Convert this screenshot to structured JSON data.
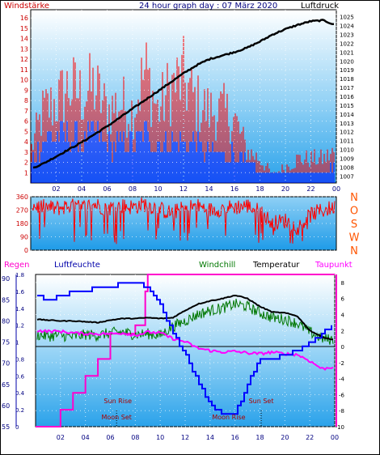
{
  "header": {
    "left_label": "Windstärke",
    "title": "24 hour graph day : 07 März 2020",
    "right_label": "Luftdruck"
  },
  "colors": {
    "wind": "#ff0000",
    "wind_gust": "#ff0000",
    "wind_avg": "#0000ff",
    "pressure": "#000000",
    "direction": "#ff0000",
    "humidity": "#0000ff",
    "rain": "#ff00cc",
    "windchill": "#007700",
    "temperature": "#000000",
    "dewpoint": "#ff00ff",
    "left_axis_label": "#cc0000",
    "right_axis_label": "#ff5500"
  },
  "chart_data": [
    {
      "type": "bar",
      "panel": "wind_pressure",
      "title": "24 hour graph day : 07 März 2020",
      "xlabel": "",
      "x_ticks": [
        "02",
        "04",
        "06",
        "08",
        "10",
        "12",
        "14",
        "16",
        "18",
        "20",
        "22",
        "00"
      ],
      "y_left": {
        "label": "Windstärke",
        "ticks": [
          1,
          2,
          3,
          4,
          5,
          6,
          7,
          8,
          9,
          10,
          11,
          12,
          13,
          14,
          15,
          16
        ],
        "lim": [
          0,
          16.8
        ]
      },
      "y_right": {
        "label": "Luftdruck",
        "ticks": [
          1007,
          1008,
          1009,
          1010,
          1011,
          1012,
          1013,
          1014,
          1015,
          1016,
          1017,
          1018,
          1019,
          1020,
          1021,
          1022,
          1023,
          1024,
          1025
        ],
        "lim": [
          1006.2,
          1025.8
        ]
      },
      "series": [
        {
          "name": "Windstärke",
          "axis": "left",
          "role": "gust",
          "x": [
            0,
            1,
            2,
            3,
            4,
            5,
            6,
            7,
            8,
            9,
            10,
            11,
            12,
            13,
            14,
            15,
            16,
            17,
            18,
            19,
            20,
            21,
            22,
            23,
            24
          ],
          "values": [
            4,
            9,
            10,
            12,
            11,
            12,
            9,
            10,
            9,
            14,
            9,
            12,
            13,
            10,
            9,
            9,
            8,
            4,
            3,
            1,
            2,
            3,
            3,
            3,
            4
          ]
        },
        {
          "name": "Windstärke Mittel",
          "axis": "left",
          "role": "average",
          "x": [
            0,
            1,
            2,
            3,
            4,
            5,
            6,
            7,
            8,
            9,
            10,
            11,
            12,
            13,
            14,
            15,
            16,
            17,
            18,
            19,
            20,
            21,
            22,
            23,
            24
          ],
          "values": [
            2,
            4,
            5,
            5,
            4,
            5,
            4,
            4,
            4,
            5,
            4,
            4,
            4,
            4,
            3,
            3,
            3,
            2,
            1,
            1,
            1,
            1,
            1,
            1,
            2
          ]
        },
        {
          "name": "Luftdruck",
          "axis": "right",
          "x": [
            0,
            1,
            2,
            3,
            4,
            5,
            6,
            7,
            8,
            9,
            10,
            11,
            12,
            13,
            14,
            15,
            16,
            17,
            18,
            19,
            20,
            21,
            22,
            23,
            24
          ],
          "values": [
            1007.8,
            1008.4,
            1009.2,
            1010.0,
            1010.8,
            1011.7,
            1012.6,
            1013.6,
            1014.6,
            1015.6,
            1016.6,
            1017.6,
            1018.6,
            1019.5,
            1020.2,
            1020.6,
            1021.0,
            1021.5,
            1022.2,
            1023.0,
            1023.6,
            1024.1,
            1024.5,
            1024.6,
            1024.0
          ]
        }
      ]
    },
    {
      "type": "line",
      "panel": "wind_direction",
      "xlabel": "",
      "y_left": {
        "ticks": [
          0,
          90,
          180,
          270,
          360
        ],
        "lim": [
          0,
          360
        ]
      },
      "y_right": {
        "ticks": [
          "N",
          "W",
          "S",
          "O",
          "N"
        ]
      },
      "series": [
        {
          "name": "Windrichtung",
          "x": [
            0,
            1,
            2,
            3,
            4,
            5,
            6,
            7,
            8,
            9,
            10,
            11,
            12,
            13,
            14,
            15,
            16,
            17,
            18,
            19,
            20,
            21,
            22,
            23,
            24
          ],
          "values": [
            300,
            290,
            280,
            300,
            285,
            310,
            280,
            300,
            290,
            310,
            280,
            250,
            280,
            300,
            270,
            280,
            290,
            300,
            260,
            180,
            200,
            150,
            240,
            270,
            290
          ]
        }
      ]
    },
    {
      "type": "line",
      "panel": "temperature_humidity",
      "x_ticks": [
        "02",
        "04",
        "06",
        "08",
        "10",
        "12",
        "14",
        "16",
        "18",
        "20",
        "22",
        "00"
      ],
      "y_rain": {
        "label": "Regen",
        "ticks": [
          0,
          0.2,
          0.4,
          0.6,
          0.8,
          1,
          1.2,
          1.4,
          1.6,
          1.8
        ],
        "lim": [
          0,
          1.8
        ]
      },
      "y_humidity": {
        "label": "Luftfeuchte",
        "ticks": [
          55,
          60,
          65,
          70,
          75,
          80,
          85,
          90
        ],
        "lim": [
          55,
          91
        ]
      },
      "y_temp": {
        "label": "Temperatur",
        "ticks": [
          -10,
          -8,
          -6,
          -4,
          -2,
          0,
          2,
          4,
          6,
          8
        ],
        "lim": [
          -10,
          9
        ]
      },
      "series_labels": {
        "windchill": "Windchill",
        "temperature": "Temperatur",
        "dewpoint": "Taupunkt"
      },
      "annotations": [
        {
          "text": "Sun Rise",
          "x": 6.6
        },
        {
          "text": "Moon Set",
          "x": 6.5
        },
        {
          "text": "Moon Rise",
          "x": 15.5
        },
        {
          "text": "Sun Set",
          "x": 18.1
        }
      ],
      "series": [
        {
          "name": "Regen",
          "axis": "rain",
          "x": [
            0,
            2,
            3,
            4,
            5,
            6,
            8,
            8.8,
            9,
            24
          ],
          "values": [
            0,
            0.2,
            0.4,
            0.6,
            0.8,
            1.1,
            1.2,
            1.6,
            1.8,
            1.8
          ]
        },
        {
          "name": "Luftfeuchte",
          "axis": "humidity",
          "x": [
            0,
            1,
            2,
            3,
            4,
            5,
            6,
            7,
            8,
            9,
            10,
            11,
            12,
            13,
            14,
            15,
            16,
            17,
            18,
            19,
            20,
            21,
            22,
            23,
            24
          ],
          "values": [
            86,
            85,
            86,
            87,
            87,
            88,
            88,
            89,
            89,
            88,
            84,
            77,
            72,
            66,
            60,
            58,
            58,
            65,
            71,
            71,
            72,
            73,
            75,
            77,
            80
          ]
        },
        {
          "name": "Windchill",
          "axis": "temp",
          "x": [
            0,
            1,
            2,
            3,
            4,
            5,
            6,
            7,
            8,
            9,
            10,
            11,
            12,
            13,
            14,
            15,
            16,
            17,
            18,
            19,
            20,
            21,
            22,
            23,
            24
          ],
          "values": [
            1.5,
            1.3,
            1.4,
            1.2,
            1.5,
            1.4,
            1.7,
            1.8,
            1.5,
            1.6,
            1.4,
            2.5,
            3.2,
            4.0,
            4.5,
            4.8,
            5.3,
            5.0,
            4.2,
            3.6,
            3.4,
            2.9,
            1.8,
            1.0,
            0.8
          ]
        },
        {
          "name": "Temperatur",
          "axis": "temp",
          "x": [
            0,
            1,
            2,
            3,
            4,
            5,
            6,
            7,
            8,
            9,
            10,
            11,
            12,
            13,
            14,
            15,
            16,
            17,
            18,
            19,
            20,
            21,
            22,
            23,
            24
          ],
          "values": [
            3.4,
            3.3,
            3.2,
            3.2,
            3.1,
            3.0,
            3.3,
            3.5,
            3.5,
            3.6,
            3.5,
            3.6,
            4.5,
            5.3,
            5.7,
            6.0,
            6.4,
            6.0,
            5.0,
            4.3,
            4.2,
            3.8,
            2.0,
            1.2,
            0.8
          ]
        },
        {
          "name": "Taupunkt",
          "axis": "temp",
          "x": [
            0,
            1,
            2,
            3,
            4,
            5,
            6,
            7,
            8,
            9,
            10,
            11,
            12,
            13,
            14,
            15,
            16,
            17,
            18,
            19,
            20,
            21,
            22,
            23,
            24
          ],
          "values": [
            2.0,
            1.9,
            1.9,
            1.7,
            1.6,
            1.6,
            1.6,
            1.7,
            1.4,
            1.8,
            1.7,
            1.0,
            0.6,
            -0.2,
            -0.5,
            -0.7,
            -0.6,
            -0.8,
            -0.9,
            -0.7,
            -0.9,
            -1.0,
            -1.8,
            -2.8,
            -2.5
          ]
        }
      ]
    }
  ]
}
